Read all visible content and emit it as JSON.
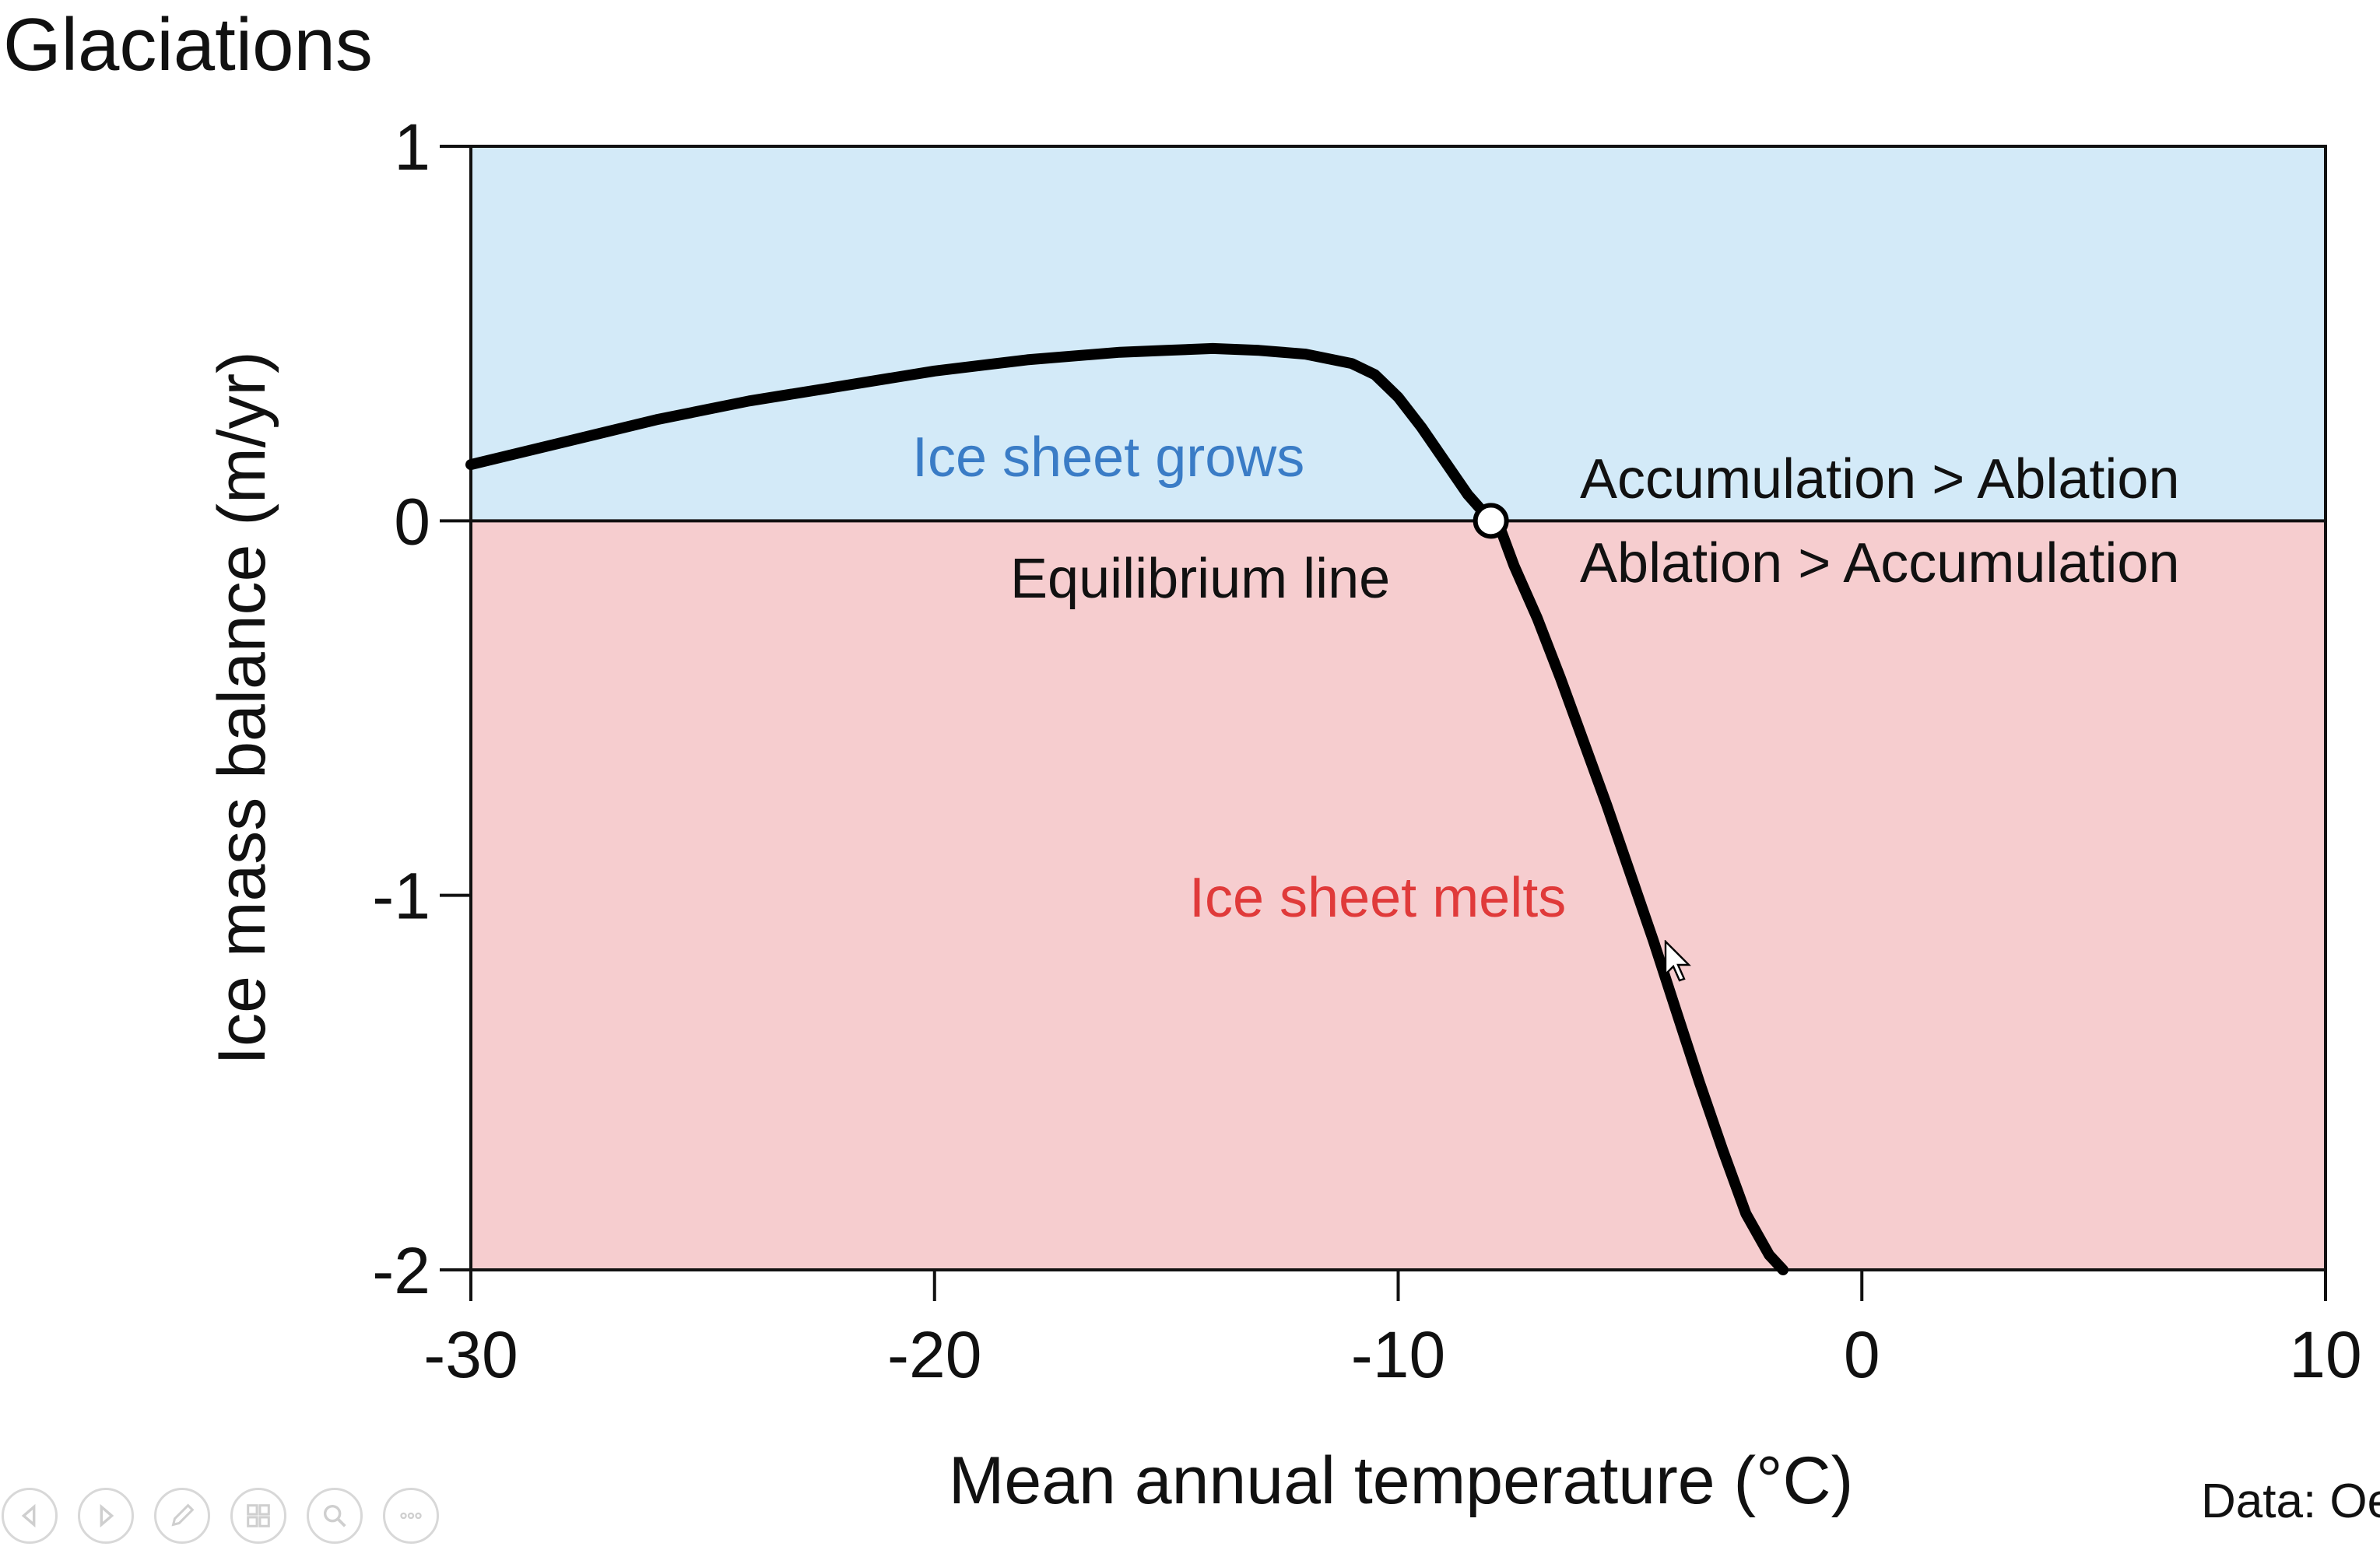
{
  "slide_title": "Glaciations",
  "source_note": "Data: Oe",
  "colors": {
    "accumulation_region": "#d3eaf8",
    "ablation_region": "#f6cdcf",
    "curve": "#000000",
    "grows_text": "#3a7cc6",
    "melts_text": "#e03a3a",
    "axis": "#111111"
  },
  "toolbar": {
    "buttons": [
      "previous-icon",
      "next-icon",
      "pen-icon",
      "slides-icon",
      "zoom-icon",
      "more-icon"
    ]
  },
  "chart_data": {
    "type": "line",
    "title": "",
    "xlabel": "Mean annual temperature (°C)",
    "ylabel": "Ice mass balance (m/yr)",
    "xlim": [
      -30,
      10
    ],
    "ylim": [
      -2,
      1
    ],
    "xticks": [
      -30,
      -20,
      -10,
      0,
      10
    ],
    "yticks": [
      1,
      0,
      -1,
      -2
    ],
    "grid": false,
    "series": [
      {
        "x": [
          -30,
          -28,
          -26,
          -24,
          -22,
          -20,
          -18,
          -16,
          -15,
          -14,
          -13,
          -12,
          -11,
          -10.5,
          -10,
          -9.5,
          -9,
          -8.5,
          -8,
          -7.8,
          -7.5,
          -7,
          -6.5,
          -6,
          -5.5,
          -5,
          -4.5,
          -4,
          -3.5,
          -3,
          -2.5,
          -2,
          -1.7
        ],
        "values": [
          0.15,
          0.21,
          0.27,
          0.32,
          0.36,
          0.4,
          0.43,
          0.45,
          0.455,
          0.46,
          0.455,
          0.445,
          0.42,
          0.39,
          0.33,
          0.25,
          0.16,
          0.07,
          0.0,
          -0.02,
          -0.12,
          -0.26,
          -0.42,
          -0.59,
          -0.76,
          -0.94,
          -1.12,
          -1.31,
          -1.5,
          -1.68,
          -1.85,
          -1.96,
          -2.0
        ]
      }
    ],
    "equilibrium_point": {
      "x": -8,
      "y": 0
    },
    "regions": [
      {
        "from": 0,
        "to": 1,
        "label": "Ice sheet grows"
      },
      {
        "from": -2,
        "to": 0,
        "label": "Ice sheet melts"
      }
    ],
    "annotations": {
      "equilibrium": "Equilibrium line",
      "accumulation_over_ablation": "Accumulation > Ablation",
      "ablation_over_accumulation": "Ablation > Accumulation"
    }
  }
}
